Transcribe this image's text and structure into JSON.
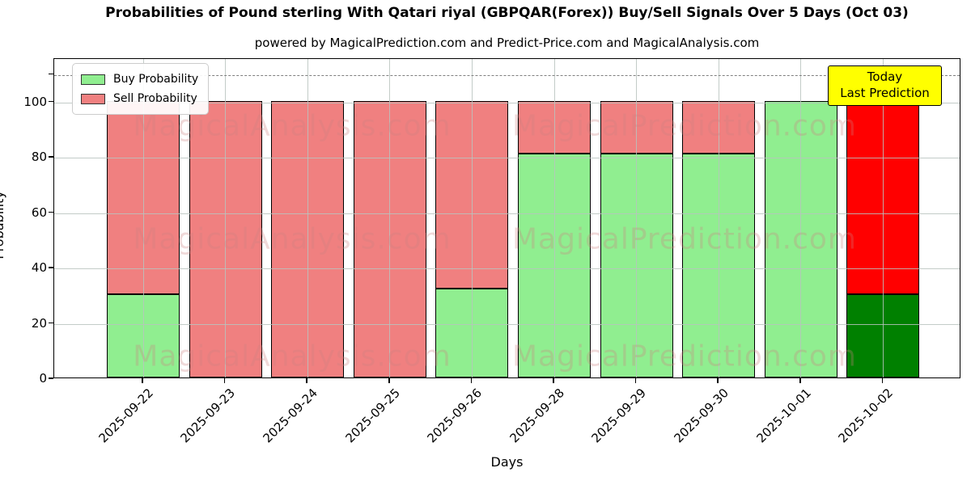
{
  "title": "Probabilities of Pound sterling With Qatari riyal (GBPQAR(Forex)) Buy/Sell Signals Over 5 Days (Oct 03)",
  "subtitle": "powered by MagicalPrediction.com and Predict-Price.com and MagicalAnalysis.com",
  "axes": {
    "x_label": "Days",
    "y_label": "Probability",
    "y_ticks": [
      0,
      20,
      40,
      60,
      80,
      100
    ],
    "dashed_line_y": 110,
    "ylim": [
      0,
      115.7
    ],
    "grid": true
  },
  "legend": {
    "position": "upper-left",
    "items": [
      {
        "label": "Buy Probability",
        "color": "#90EE90"
      },
      {
        "label": "Sell Probability",
        "color": "#F08080"
      }
    ]
  },
  "annotation": {
    "line1": "Today",
    "line2": "Last Prediction",
    "bg_color": "#FFFF00",
    "border_color": "#000000"
  },
  "watermarks": {
    "texts": [
      "MagicalAnalysis.com",
      "MagicalPrediction.com"
    ],
    "color": "#CD8282"
  },
  "colors": {
    "buy": "#90EE90",
    "sell": "#F08080",
    "buy_today": "#008000",
    "sell_today": "#FF0000",
    "bar_edge": "#000000",
    "dashed_line": "#7F7F7F"
  },
  "chart_data": {
    "type": "bar",
    "stacked": true,
    "title": "Probabilities of Pound sterling With Qatari riyal (GBPQAR(Forex)) Buy/Sell Signals Over 5 Days (Oct 03)",
    "xlabel": "Days",
    "ylabel": "Probability",
    "ylim": [
      0,
      115.7
    ],
    "categories": [
      "2025-09-22",
      "2025-09-23",
      "2025-09-24",
      "2025-09-25",
      "2025-09-26",
      "2025-09-28",
      "2025-09-29",
      "2025-09-30",
      "2025-10-01",
      "2025-10-02"
    ],
    "series": [
      {
        "name": "Buy Probability",
        "values": [
          30,
          0,
          0,
          0,
          32,
          81,
          81,
          81,
          100,
          30
        ]
      },
      {
        "name": "Sell Probability",
        "values": [
          70,
          100,
          100,
          100,
          68,
          19,
          19,
          19,
          0,
          70
        ]
      }
    ],
    "highlight": {
      "index": 9,
      "buy_color": "#008000",
      "sell_color": "#FF0000",
      "label": "Today / Last Prediction"
    },
    "reference_line": 110,
    "legend_position": "upper left",
    "grid": true
  }
}
